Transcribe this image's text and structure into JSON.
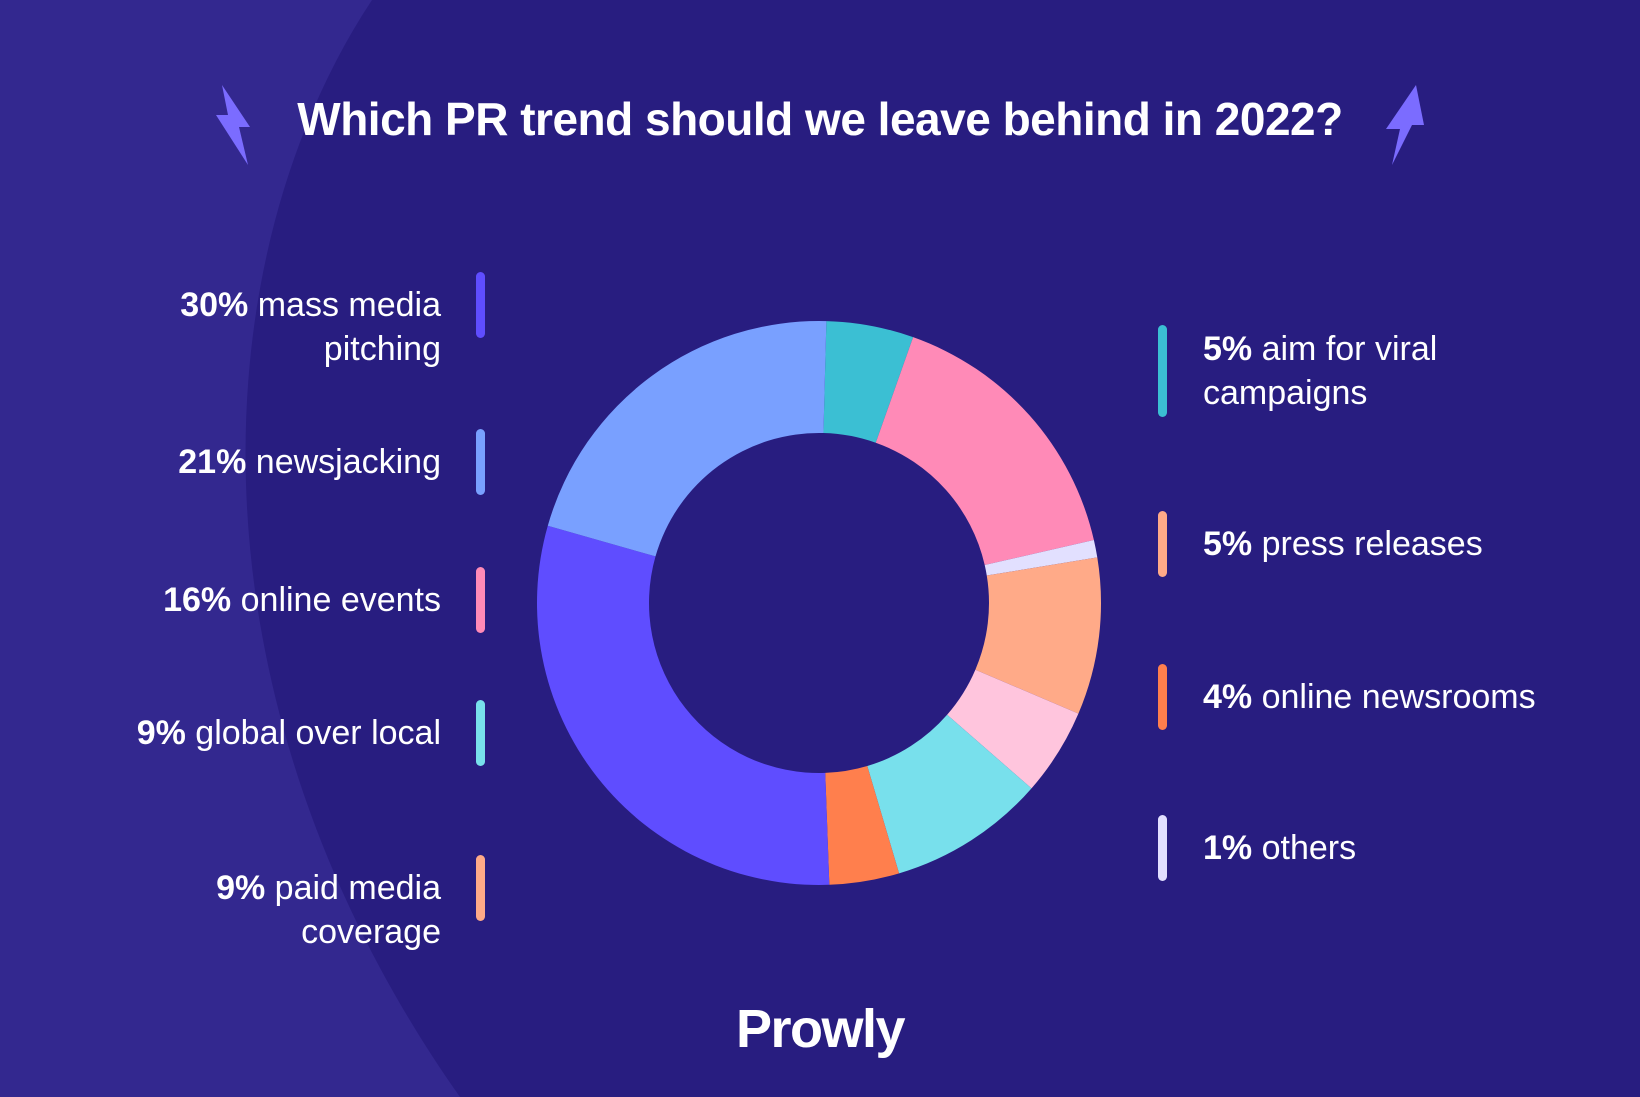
{
  "title": "Which PR trend should we leave behind in 2022?",
  "brand": "Prowly",
  "colors": {
    "background": "#2b2185",
    "bolt": "#7b6cff"
  },
  "chart_data": {
    "type": "pie",
    "donut": true,
    "title": "Which PR trend should we leave behind in 2022?",
    "unit": "%",
    "slices": [
      {
        "pct": "5%",
        "label": "aim for viral campaigns",
        "value": 5,
        "color": "#3bbfd3",
        "legend_color": "#3bbfd3"
      },
      {
        "pct": "16%",
        "label": "online events",
        "value": 16,
        "color": "#ff8ab7",
        "legend_color": "#ff8ab7"
      },
      {
        "pct": "1%",
        "label": "others",
        "value": 1,
        "color": "#e2e0ff",
        "legend_color": "#e2e0ff"
      },
      {
        "pct": "9%",
        "label": "paid media coverage",
        "value": 9,
        "color": "#ffaa88",
        "legend_color": "#ffaa88"
      },
      {
        "pct": "5%",
        "label": "press releases",
        "value": 5,
        "color": "#ffc5dd",
        "legend_color": "#ffaa88"
      },
      {
        "pct": "9%",
        "label": "global over local",
        "value": 9,
        "color": "#78e0ec",
        "legend_color": "#78e0ec"
      },
      {
        "pct": "4%",
        "label": "online newsrooms",
        "value": 4,
        "color": "#ff7f4d",
        "legend_color": "#ff7f4d"
      },
      {
        "pct": "30%",
        "label": "mass media pitching",
        "value": 30,
        "color": "#5f4dff",
        "legend_color": "#5f4dff"
      },
      {
        "pct": "21%",
        "label": "newsjacking",
        "value": 21,
        "color": "#79a0ff",
        "legend_color": "#79a0ff"
      }
    ],
    "legend_left": [
      7,
      8,
      1,
      5,
      3
    ],
    "legend_right": [
      0,
      4,
      6,
      2
    ]
  }
}
